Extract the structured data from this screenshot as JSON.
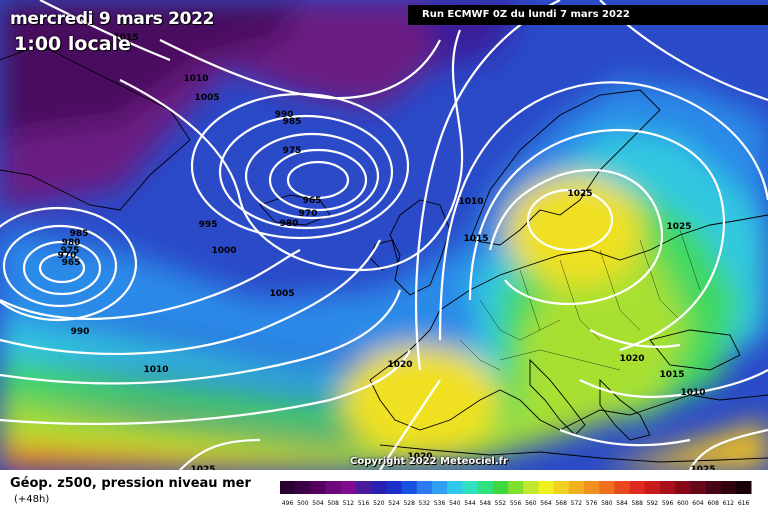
{
  "header": {
    "date_label": "mercredi 9 mars 2022",
    "time_label": "1:00 locale",
    "run_label": "Run ECMWF 0Z du lundi 7 mars 2022"
  },
  "footer": {
    "copyright": "Copyright 2022 Meteociel.fr",
    "legend_title": "Géop. z500, pression niveau mer",
    "legend_sub": "(+48h)"
  },
  "colors": {
    "purple_dark": "#4a0a5e",
    "purple": "#7a1a8a",
    "blue_dark": "#1a2a9a",
    "blue": "#2a6ae0",
    "cyan": "#30c8e0",
    "green": "#30d060",
    "yellowgreen": "#a0e030",
    "yellow": "#f0e020",
    "orange": "#f0a020",
    "red": "#e04020",
    "isobar": "#ffffff",
    "coast": "#000000"
  },
  "isobar_labels": [
    {
      "text": "1010"
    },
    {
      "text": "1005"
    },
    {
      "text": "990"
    },
    {
      "text": "985"
    },
    {
      "text": "975"
    },
    {
      "text": "965"
    },
    {
      "text": "970"
    },
    {
      "text": "980"
    },
    {
      "text": "995"
    },
    {
      "text": "1000"
    },
    {
      "text": "1010"
    },
    {
      "text": "1015"
    },
    {
      "text": "1025"
    },
    {
      "text": "1025"
    },
    {
      "text": "985"
    },
    {
      "text": "980"
    },
    {
      "text": "975"
    },
    {
      "text": "970"
    },
    {
      "text": "965"
    },
    {
      "text": "990"
    },
    {
      "text": "1005"
    },
    {
      "text": "1010"
    },
    {
      "text": "1020"
    },
    {
      "text": "1020"
    },
    {
      "text": "1015"
    },
    {
      "text": "1010"
    },
    {
      "text": "1020"
    },
    {
      "text": "1025"
    },
    {
      "text": "1025"
    },
    {
      "text": "1015"
    }
  ],
  "legend_scale": [
    {
      "label": "496",
      "color": "#2a0030"
    },
    {
      "label": "500",
      "color": "#3c0048"
    },
    {
      "label": "504",
      "color": "#55005e"
    },
    {
      "label": "508",
      "color": "#6a0a78"
    },
    {
      "label": "512",
      "color": "#800a90"
    },
    {
      "label": "516",
      "color": "#4a1a9a"
    },
    {
      "label": "520",
      "color": "#2a20b0"
    },
    {
      "label": "524",
      "color": "#1a30c8"
    },
    {
      "label": "528",
      "color": "#1a50e0"
    },
    {
      "label": "532",
      "color": "#2a7af0"
    },
    {
      "label": "536",
      "color": "#30a0f0"
    },
    {
      "label": "540",
      "color": "#30c8e8"
    },
    {
      "label": "544",
      "color": "#30e0c0"
    },
    {
      "label": "548",
      "color": "#30e080"
    },
    {
      "label": "552",
      "color": "#40d840"
    },
    {
      "label": "556",
      "color": "#80e030"
    },
    {
      "label": "560",
      "color": "#c0e830"
    },
    {
      "label": "564",
      "color": "#f0f020"
    },
    {
      "label": "568",
      "color": "#f0d020"
    },
    {
      "label": "572",
      "color": "#f0b020"
    },
    {
      "label": "576",
      "color": "#f09020"
    },
    {
      "label": "580",
      "color": "#f07020"
    },
    {
      "label": "584",
      "color": "#e84a20"
    },
    {
      "label": "588",
      "color": "#e02a20"
    },
    {
      "label": "592",
      "color": "#c81a1a"
    },
    {
      "label": "596",
      "color": "#a8101a"
    },
    {
      "label": "600",
      "color": "#88081a"
    },
    {
      "label": "604",
      "color": "#680818"
    },
    {
      "label": "608",
      "color": "#480414"
    },
    {
      "label": "612",
      "color": "#30020e"
    },
    {
      "label": "616",
      "color": "#180006"
    }
  ]
}
